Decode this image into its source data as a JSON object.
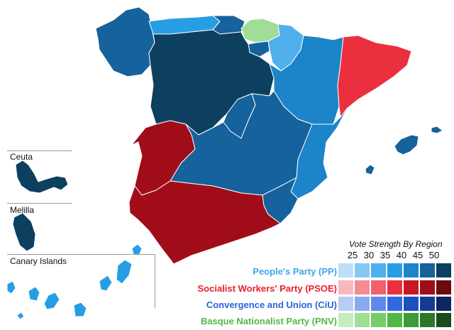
{
  "insets": {
    "ceuta": "Ceuta",
    "melilla": "Melilla",
    "canary": "Canary Islands"
  },
  "legend": {
    "title": "Vote Strength By Region",
    "ticks": [
      "25",
      "30",
      "35",
      "40",
      "45",
      "50"
    ],
    "parties": [
      {
        "key": "pp",
        "label": "People's Party (PP)",
        "label_color": "#3fa7e8",
        "shades": [
          "#bde0f7",
          "#85c8f0",
          "#4fb0ec",
          "#279ee4",
          "#1c84c8",
          "#15629c",
          "#0d3f5f"
        ]
      },
      {
        "key": "psoe",
        "label": "Socialist Workers' Party (PSOE)",
        "label_color": "#e8202f",
        "shades": [
          "#f7b9c0",
          "#f48c96",
          "#f0606d",
          "#ec2f3f",
          "#c81623",
          "#a00d18",
          "#6b0a0f"
        ]
      },
      {
        "key": "ciu",
        "label": "Convergence and Union (CiU)",
        "label_color": "#2a64d6",
        "shades": [
          "#b9ccf5",
          "#8aaaf0",
          "#5e88ea",
          "#3168e2",
          "#1c4fc0",
          "#143b93",
          "#0c2660"
        ]
      },
      {
        "key": "pnv",
        "label": "Basque Nationalist Party (PNV)",
        "label_color": "#55b648",
        "shades": [
          "#c6ecc0",
          "#a0dd96",
          "#76cc6a",
          "#4fb844",
          "#3e9a36",
          "#2e7628",
          "#1b4d18"
        ]
      }
    ]
  },
  "region_colors": {
    "galicia": "#15629c",
    "asturias": "#279ee4",
    "cantabria": "#15629c",
    "basque": "#a0dd96",
    "navarre": "#4fb0ec",
    "castile_leon": "#0d3f5f",
    "la_rioja": "#15629c",
    "aragon": "#1c84c8",
    "catalonia": "#ec2f3f",
    "madrid": "#15629c",
    "castile_la_mancha": "#15629c",
    "valencia": "#1c84c8",
    "murcia": "#15629c",
    "extremadura": "#a00d18",
    "andalusia": "#a00d18",
    "balearic": "#15629c",
    "ceuta": "#0d3f5f",
    "melilla": "#0d3f5f",
    "canary": "#279ee4"
  }
}
